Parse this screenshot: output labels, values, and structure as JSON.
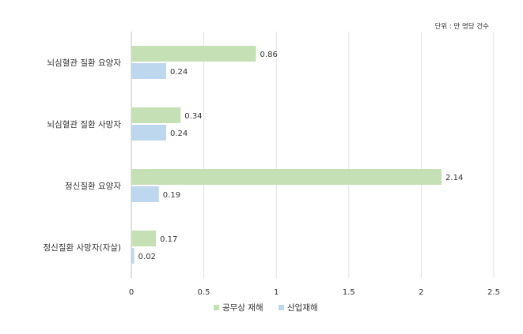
{
  "unit_note": "단위 : 만 명당 건수",
  "chart_data": {
    "type": "bar",
    "orientation": "horizontal",
    "categories": [
      "뇌심혈관 질환 요양자",
      "뇌심혈관 질환 사망자",
      "정신질환 요양자",
      "정신질환 사망자(자살)"
    ],
    "series": [
      {
        "name": "공무상 재해",
        "color": "#c5e0b4",
        "values": [
          0.86,
          0.34,
          2.14,
          0.17
        ]
      },
      {
        "name": "산업재해",
        "color": "#bdd7ee",
        "values": [
          0.24,
          0.24,
          0.19,
          0.02
        ]
      }
    ],
    "xlim": [
      0,
      2.5
    ],
    "xticks": [
      "0",
      "0.5",
      "1",
      "1.5",
      "2",
      "2.5"
    ],
    "grid": "vertical",
    "legend_position": "bottom",
    "data_labels": true
  }
}
